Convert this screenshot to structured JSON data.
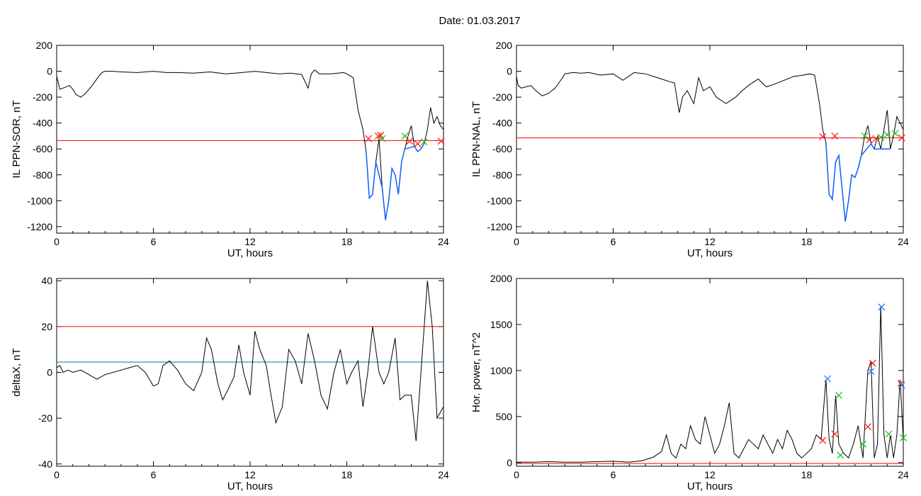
{
  "date_label": "Date:  01.03.2017",
  "colors": {
    "data_line": "#000000",
    "threshold_red": "#ff0000",
    "threshold_cyan": "#0077aa",
    "segment_blue": "#1060ff",
    "marker_red": "#ff2020",
    "marker_green": "#20c020",
    "marker_blue": "#1a80ff"
  },
  "chart_data": [
    {
      "id": "sor",
      "type": "line",
      "xlabel": "UT, hours",
      "ylabel": "IL PPN-SOR, nT",
      "xlim": [
        0,
        24
      ],
      "ylim": [
        -1250,
        200
      ],
      "xticks": [
        0,
        6,
        12,
        18,
        24
      ],
      "yticks": [
        200,
        0,
        -200,
        -400,
        -600,
        -800,
        -1000,
        -1200
      ],
      "threshold": -535,
      "highlight_from": 19.1,
      "x": [
        0,
        0.1,
        0.2,
        0.4,
        0.8,
        1.0,
        1.2,
        1.5,
        1.8,
        2.2,
        2.6,
        2.8,
        3.0,
        3.5,
        4.0,
        5.0,
        6.0,
        6.8,
        7.5,
        8.5,
        9.5,
        10.5,
        11.5,
        12.3,
        13.0,
        13.8,
        14.5,
        15.2,
        15.6,
        15.8,
        16.0,
        16.3,
        17.0,
        17.8,
        18.0,
        18.4,
        18.7,
        19.0,
        19.2,
        19.4,
        19.6,
        19.8,
        20.0,
        20.2,
        20.4,
        20.6,
        20.8,
        21.0,
        21.2,
        21.4,
        21.6,
        21.8,
        22.0,
        22.2,
        22.4,
        22.6,
        22.8,
        23.0,
        23.2,
        23.4,
        23.6,
        23.8,
        24.0
      ],
      "y": [
        -40,
        -90,
        -140,
        -130,
        -110,
        -140,
        -180,
        -200,
        -170,
        -110,
        -40,
        -10,
        0,
        0,
        -5,
        -10,
        0,
        -10,
        -10,
        -15,
        -5,
        -20,
        -10,
        0,
        -10,
        -20,
        -15,
        -25,
        -130,
        -20,
        10,
        -20,
        -20,
        -10,
        -20,
        -50,
        -300,
        -450,
        -620,
        -980,
        -950,
        -700,
        -520,
        -900,
        -1150,
        -1000,
        -750,
        -800,
        -950,
        -700,
        -600,
        -500,
        -420,
        -580,
        -620,
        -600,
        -560,
        -450,
        -280,
        -400,
        -350,
        -420,
        -450
      ],
      "markers": [
        {
          "x": 19.35,
          "y": -520,
          "color": "marker_red"
        },
        {
          "x": 19.95,
          "y": -500,
          "color": "marker_red"
        },
        {
          "x": 20.1,
          "y": -495,
          "color": "marker_red"
        },
        {
          "x": 20.2,
          "y": -520,
          "color": "marker_green"
        },
        {
          "x": 21.6,
          "y": -500,
          "color": "marker_green"
        },
        {
          "x": 21.9,
          "y": -540,
          "color": "marker_red"
        },
        {
          "x": 22.4,
          "y": -560,
          "color": "marker_red"
        },
        {
          "x": 22.8,
          "y": -545,
          "color": "marker_green"
        },
        {
          "x": 23.85,
          "y": -540,
          "color": "marker_red"
        }
      ]
    },
    {
      "id": "nal",
      "type": "line",
      "xlabel": "UT, hours",
      "ylabel": "IL PPN-NAL, nT",
      "xlim": [
        0,
        24
      ],
      "ylim": [
        -1250,
        200
      ],
      "xticks": [
        0,
        6,
        12,
        18,
        24
      ],
      "yticks": [
        200,
        0,
        -200,
        -400,
        -600,
        -800,
        -1000,
        -1200
      ],
      "threshold": -515,
      "highlight_from": 19.1,
      "x": [
        0,
        0.1,
        0.3,
        0.6,
        0.9,
        1.2,
        1.6,
        2.0,
        2.4,
        2.8,
        3.0,
        3.5,
        4.0,
        4.5,
        5.2,
        6.0,
        6.6,
        7.3,
        8.0,
        8.5,
        9.0,
        9.5,
        9.8,
        10.1,
        10.3,
        10.6,
        11.0,
        11.3,
        11.6,
        12.0,
        12.4,
        13.0,
        13.6,
        14.0,
        14.5,
        15.0,
        15.5,
        16.0,
        16.6,
        17.2,
        17.8,
        18.2,
        18.5,
        18.8,
        19.0,
        19.2,
        19.4,
        19.6,
        19.8,
        20.0,
        20.2,
        20.4,
        20.6,
        20.8,
        21.0,
        21.2,
        21.4,
        21.6,
        21.8,
        22.0,
        22.2,
        22.4,
        22.6,
        22.8,
        23.0,
        23.2,
        23.4,
        23.6,
        23.8,
        24.0
      ],
      "y": [
        -40,
        -110,
        -130,
        -120,
        -110,
        -150,
        -190,
        -170,
        -130,
        -60,
        -20,
        -10,
        -15,
        -10,
        -30,
        -20,
        -70,
        -10,
        -20,
        -40,
        -60,
        -80,
        -90,
        -320,
        -200,
        -150,
        -250,
        -50,
        -150,
        -120,
        -200,
        -250,
        -200,
        -150,
        -100,
        -60,
        -120,
        -100,
        -70,
        -40,
        -30,
        -20,
        -30,
        -250,
        -450,
        -550,
        -950,
        -990,
        -700,
        -650,
        -900,
        -1160,
        -1000,
        -800,
        -820,
        -750,
        -650,
        -500,
        -420,
        -560,
        -600,
        -500,
        -600,
        -450,
        -300,
        -600,
        -500,
        -350,
        -400,
        -450
      ],
      "markers": [
        {
          "x": 19.0,
          "y": -505,
          "color": "marker_red"
        },
        {
          "x": 19.75,
          "y": -500,
          "color": "marker_red"
        },
        {
          "x": 21.6,
          "y": -500,
          "color": "marker_green"
        },
        {
          "x": 21.9,
          "y": -530,
          "color": "marker_red"
        },
        {
          "x": 22.3,
          "y": -520,
          "color": "marker_red"
        },
        {
          "x": 22.6,
          "y": -510,
          "color": "marker_green"
        },
        {
          "x": 23.0,
          "y": -490,
          "color": "marker_green"
        },
        {
          "x": 23.5,
          "y": -480,
          "color": "marker_green"
        },
        {
          "x": 23.9,
          "y": -515,
          "color": "marker_red"
        }
      ]
    },
    {
      "id": "deltax",
      "type": "line",
      "xlabel": "UT, hours",
      "ylabel": "deltaX, nT",
      "xlim": [
        0,
        24
      ],
      "ylim": [
        -41,
        41
      ],
      "xticks": [
        0,
        6,
        12,
        18,
        24
      ],
      "yticks": [
        40,
        20,
        0,
        -20,
        -40
      ],
      "thresholds": [
        {
          "y": 20,
          "color": "threshold_red"
        },
        {
          "y": 4.5,
          "color": "threshold_cyan"
        }
      ],
      "x": [
        0,
        0.2,
        0.4,
        0.7,
        1.0,
        1.5,
        2.0,
        2.5,
        3.0,
        3.5,
        4.0,
        4.5,
        5.0,
        5.5,
        6.0,
        6.3,
        6.6,
        7.0,
        7.5,
        8.0,
        8.5,
        9.0,
        9.3,
        9.6,
        10.0,
        10.3,
        10.6,
        11.0,
        11.3,
        11.6,
        12.0,
        12.3,
        12.6,
        13.0,
        13.3,
        13.6,
        14.0,
        14.4,
        14.8,
        15.2,
        15.6,
        16.0,
        16.4,
        16.8,
        17.2,
        17.6,
        18.0,
        18.3,
        18.7,
        19.0,
        19.3,
        19.6,
        20.0,
        20.3,
        20.6,
        21.0,
        21.3,
        21.6,
        22.0,
        22.3,
        22.6,
        23.0,
        23.3,
        23.6,
        24.0
      ],
      "y": [
        2,
        3,
        0,
        1,
        0,
        1,
        -1,
        -3,
        -1,
        0,
        1,
        2,
        3,
        0,
        -6,
        -5,
        3,
        5,
        1,
        -5,
        -8,
        0,
        15,
        10,
        -5,
        -12,
        -8,
        -2,
        12,
        0,
        -10,
        18,
        10,
        3,
        -10,
        -22,
        -15,
        10,
        5,
        -5,
        17,
        5,
        -10,
        -16,
        0,
        10,
        -5,
        0,
        5,
        -15,
        0,
        20,
        0,
        -5,
        0,
        15,
        -12,
        -10,
        -10,
        -30,
        0,
        40,
        20,
        -20,
        -15
      ]
    },
    {
      "id": "power",
      "type": "line",
      "xlabel": "UT, hours",
      "ylabel": "Hor. power, nT^2",
      "xlim": [
        0,
        24
      ],
      "ylim": [
        -40,
        2000
      ],
      "xticks": [
        0,
        6,
        12,
        18,
        24
      ],
      "yticks": [
        2000,
        1500,
        1000,
        500,
        0
      ],
      "threshold": -10,
      "x": [
        0,
        1,
        2,
        3,
        4,
        5,
        6,
        7,
        7.8,
        8.5,
        9.0,
        9.3,
        9.6,
        9.9,
        10.2,
        10.5,
        10.8,
        11.1,
        11.4,
        11.7,
        12.0,
        12.3,
        12.6,
        12.9,
        13.2,
        13.5,
        13.8,
        14.1,
        14.4,
        14.7,
        15.0,
        15.3,
        15.6,
        15.9,
        16.2,
        16.5,
        16.8,
        17.1,
        17.4,
        17.7,
        18.0,
        18.3,
        18.6,
        18.9,
        19.2,
        19.4,
        19.6,
        19.8,
        20.0,
        20.3,
        20.6,
        20.9,
        21.2,
        21.5,
        21.8,
        22.0,
        22.2,
        22.4,
        22.6,
        22.8,
        23.0,
        23.2,
        23.4,
        23.6,
        23.8,
        24.0
      ],
      "y": [
        5,
        5,
        10,
        5,
        5,
        10,
        15,
        5,
        20,
        60,
        120,
        300,
        100,
        50,
        200,
        150,
        400,
        250,
        200,
        500,
        300,
        100,
        200,
        400,
        650,
        100,
        50,
        150,
        250,
        200,
        150,
        300,
        200,
        100,
        250,
        150,
        350,
        250,
        100,
        50,
        100,
        150,
        300,
        250,
        900,
        250,
        100,
        730,
        200,
        100,
        50,
        200,
        400,
        50,
        1000,
        1100,
        50,
        200,
        1700,
        300,
        50,
        300,
        50,
        300,
        900,
        250
      ],
      "markers": [
        {
          "x": 19.3,
          "y": 910,
          "color": "marker_blue"
        },
        {
          "x": 19.0,
          "y": 240,
          "color": "marker_red"
        },
        {
          "x": 19.75,
          "y": 310,
          "color": "marker_red"
        },
        {
          "x": 20.0,
          "y": 730,
          "color": "marker_green"
        },
        {
          "x": 20.1,
          "y": 80,
          "color": "marker_green"
        },
        {
          "x": 21.5,
          "y": 200,
          "color": "marker_green"
        },
        {
          "x": 21.8,
          "y": 390,
          "color": "marker_red"
        },
        {
          "x": 22.1,
          "y": 1080,
          "color": "marker_red"
        },
        {
          "x": 22.0,
          "y": 990,
          "color": "marker_blue"
        },
        {
          "x": 22.65,
          "y": 1690,
          "color": "marker_blue"
        },
        {
          "x": 23.1,
          "y": 310,
          "color": "marker_green"
        },
        {
          "x": 23.85,
          "y": 860,
          "color": "marker_red"
        },
        {
          "x": 23.9,
          "y": 840,
          "color": "marker_blue"
        },
        {
          "x": 24.0,
          "y": 270,
          "color": "marker_green"
        }
      ]
    }
  ]
}
